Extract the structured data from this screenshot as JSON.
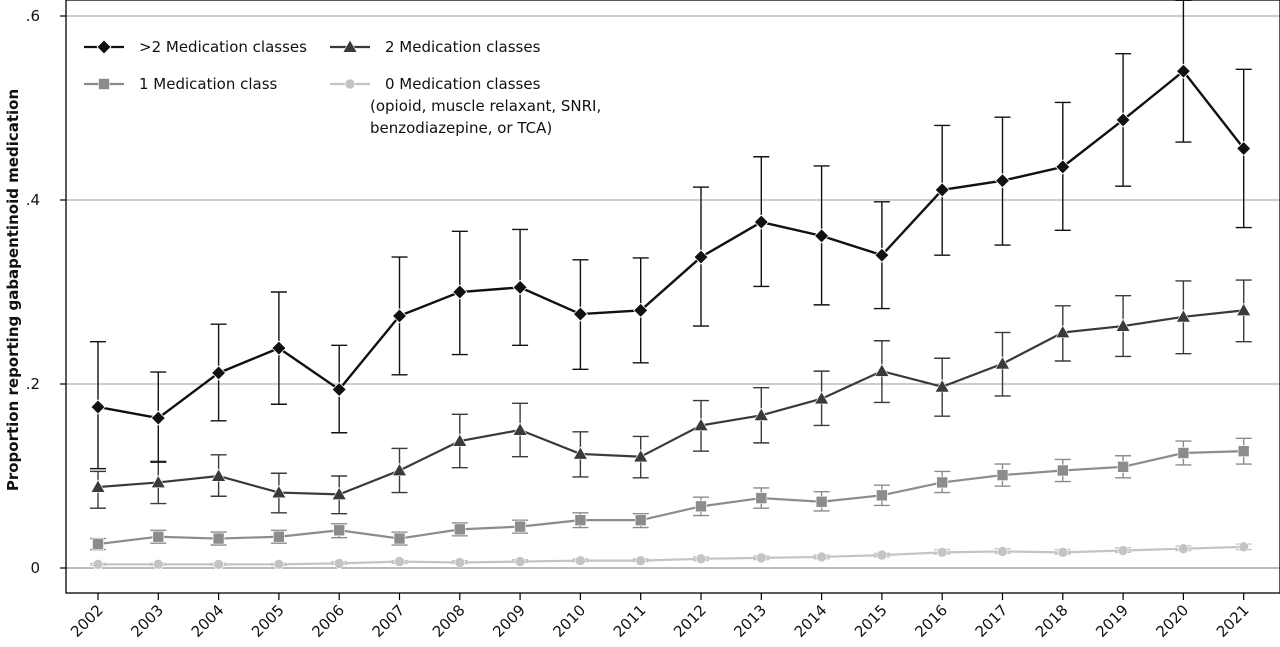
{
  "chart_data": {
    "type": "line",
    "ylabel": "Proportion reporting gabapentinoid medication",
    "xlabel": "",
    "title": "",
    "x": [
      "2002",
      "2003",
      "2004",
      "2005",
      "2006",
      "2007",
      "2008",
      "2009",
      "2010",
      "2011",
      "2012",
      "2013",
      "2014",
      "2015",
      "2016",
      "2017",
      "2018",
      "2019",
      "2020",
      "2021"
    ],
    "ylim": [
      0,
      0.62
    ],
    "yticks": [
      0,
      0.2,
      0.4,
      0.6
    ],
    "ytick_labels": [
      "0",
      ".2",
      ".4",
      ".6"
    ],
    "grid": "horizontal",
    "legend_position": "top-left",
    "series": [
      {
        "name": ">2 Medication classes",
        "marker": "diamond",
        "color": "#111111",
        "values": [
          0.175,
          0.163,
          0.212,
          0.239,
          0.194,
          0.274,
          0.3,
          0.305,
          0.276,
          0.28,
          0.338,
          0.376,
          0.361,
          0.34,
          0.411,
          0.421,
          0.436,
          0.487,
          0.54,
          0.456
        ],
        "ci_low": [
          0.108,
          0.115,
          0.16,
          0.178,
          0.147,
          0.21,
          0.232,
          0.242,
          0.216,
          0.223,
          0.263,
          0.306,
          0.286,
          0.282,
          0.34,
          0.351,
          0.367,
          0.415,
          0.463,
          0.37
        ],
        "ci_high": [
          0.246,
          0.213,
          0.265,
          0.3,
          0.242,
          0.338,
          0.366,
          0.368,
          0.335,
          0.337,
          0.414,
          0.447,
          0.437,
          0.398,
          0.481,
          0.49,
          0.506,
          0.559,
          0.617,
          0.542
        ]
      },
      {
        "name": "2 Medication classes",
        "marker": "triangle",
        "color": "#3a3a3a",
        "values": [
          0.088,
          0.093,
          0.1,
          0.082,
          0.08,
          0.106,
          0.138,
          0.15,
          0.124,
          0.121,
          0.155,
          0.166,
          0.184,
          0.214,
          0.197,
          0.222,
          0.256,
          0.263,
          0.273,
          0.28
        ],
        "ci_low": [
          0.065,
          0.07,
          0.078,
          0.06,
          0.059,
          0.082,
          0.109,
          0.121,
          0.099,
          0.098,
          0.127,
          0.136,
          0.155,
          0.18,
          0.165,
          0.187,
          0.225,
          0.23,
          0.233,
          0.246
        ],
        "ci_high": [
          0.105,
          0.116,
          0.123,
          0.103,
          0.1,
          0.13,
          0.167,
          0.179,
          0.148,
          0.143,
          0.182,
          0.196,
          0.214,
          0.247,
          0.228,
          0.256,
          0.285,
          0.296,
          0.312,
          0.313
        ]
      },
      {
        "name": "1 Medication class",
        "marker": "square",
        "color": "#8c8c8c",
        "values": [
          0.026,
          0.034,
          0.032,
          0.034,
          0.041,
          0.032,
          0.042,
          0.045,
          0.052,
          0.052,
          0.067,
          0.076,
          0.072,
          0.079,
          0.093,
          0.101,
          0.106,
          0.11,
          0.125,
          0.127
        ],
        "ci_low": [
          0.02,
          0.027,
          0.025,
          0.027,
          0.033,
          0.025,
          0.035,
          0.038,
          0.044,
          0.044,
          0.057,
          0.065,
          0.062,
          0.068,
          0.082,
          0.089,
          0.094,
          0.098,
          0.112,
          0.113
        ],
        "ci_high": [
          0.032,
          0.041,
          0.039,
          0.041,
          0.048,
          0.039,
          0.049,
          0.052,
          0.06,
          0.059,
          0.077,
          0.087,
          0.083,
          0.09,
          0.105,
          0.113,
          0.118,
          0.122,
          0.138,
          0.141
        ]
      },
      {
        "name": "0 Medication classes",
        "marker": "circle",
        "color": "#c4c4c4",
        "values": [
          0.004,
          0.004,
          0.004,
          0.004,
          0.005,
          0.007,
          0.006,
          0.007,
          0.008,
          0.008,
          0.01,
          0.011,
          0.012,
          0.014,
          0.017,
          0.018,
          0.017,
          0.019,
          0.021,
          0.023
        ],
        "ci_low": [
          0.003,
          0.003,
          0.003,
          0.003,
          0.004,
          0.005,
          0.005,
          0.006,
          0.007,
          0.007,
          0.008,
          0.009,
          0.01,
          0.012,
          0.015,
          0.016,
          0.015,
          0.017,
          0.019,
          0.02
        ],
        "ci_high": [
          0.005,
          0.005,
          0.005,
          0.005,
          0.007,
          0.008,
          0.008,
          0.009,
          0.01,
          0.01,
          0.012,
          0.013,
          0.014,
          0.016,
          0.02,
          0.021,
          0.02,
          0.022,
          0.024,
          0.026
        ]
      }
    ],
    "legend": [
      {
        "label": ">2 Medication classes",
        "marker": "diamond"
      },
      {
        "label": "2 Medication classes",
        "marker": "triangle"
      },
      {
        "label": "1 Medication class",
        "marker": "square"
      },
      {
        "label": "0 Medication classes",
        "marker": "circle",
        "extra_lines": [
          "(opioid, muscle relaxant, SNRI,",
          "benzodiazepine, or TCA)"
        ]
      }
    ]
  }
}
